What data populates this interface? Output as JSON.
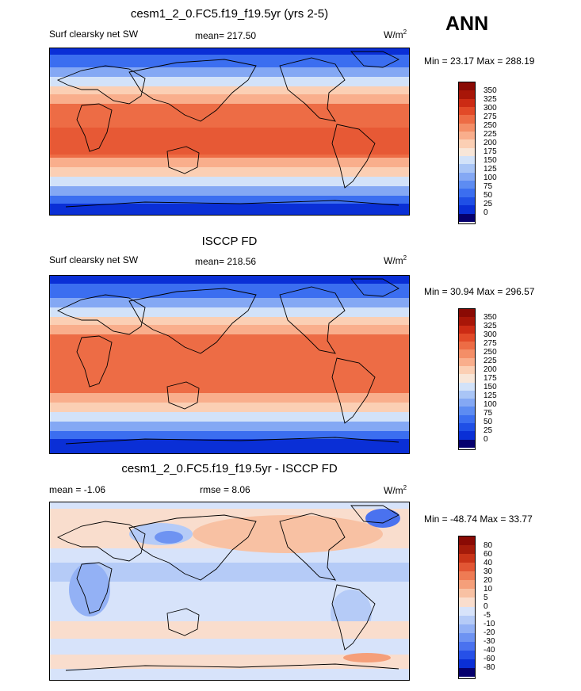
{
  "season": "ANN",
  "colors": {
    "abs_scale": [
      "#06006e",
      "#0a2fd6",
      "#1f4fe6",
      "#3b6ef0",
      "#5d8cf2",
      "#84a8f4",
      "#a9c5f6",
      "#d2e2f9",
      "#f8e6d8",
      "#fbcfb4",
      "#f9ae8c",
      "#f48e67",
      "#ed6c45",
      "#e24a28",
      "#cc2b14",
      "#a81608",
      "#8a0a04"
    ],
    "diff_scale": [
      "#06006e",
      "#0a2fd6",
      "#2650e8",
      "#4a72ef",
      "#6e93f2",
      "#93b1f5",
      "#b5cbf7",
      "#d7e3fa",
      "#f9ddcd",
      "#f8c1a3",
      "#f59f7a",
      "#ee7b54",
      "#e25634",
      "#c93418",
      "#a51b0a",
      "#8a0a04"
    ]
  },
  "panels": [
    {
      "title": "cesm1_2_0.FC5.f19_f19.5yr (yrs 2-5)",
      "left_label": "Surf clearsky net SW",
      "stat": "mean= 217.50",
      "units": "W/m",
      "units_sup": "2",
      "minmax": "Min =  23.17 Max = 288.19",
      "ticks": [
        "350",
        "325",
        "300",
        "275",
        "250",
        "225",
        "200",
        "175",
        "150",
        "125",
        "100",
        "75",
        "50",
        "25",
        "0"
      ]
    },
    {
      "title": "ISCCP FD",
      "left_label": "Surf clearsky net SW",
      "stat": "mean= 218.56",
      "units": "W/m",
      "units_sup": "2",
      "minmax": "Min =  30.94 Max = 296.57",
      "ticks": [
        "350",
        "325",
        "300",
        "275",
        "250",
        "225",
        "200",
        "175",
        "150",
        "125",
        "100",
        "75",
        "50",
        "25",
        "0"
      ]
    },
    {
      "title": "cesm1_2_0.FC5.f19_f19.5yr - ISCCP FD",
      "left_label": "mean =  -1.06",
      "stat": "rmse =   8.06",
      "units": "W/m",
      "units_sup": "2",
      "minmax": "Min = -48.74 Max =  33.77",
      "ticks": [
        "80",
        "60",
        "40",
        "30",
        "20",
        "10",
        "5",
        "0",
        "-5",
        "-10",
        "-20",
        "-30",
        "-40",
        "-60",
        "-80"
      ]
    }
  ]
}
